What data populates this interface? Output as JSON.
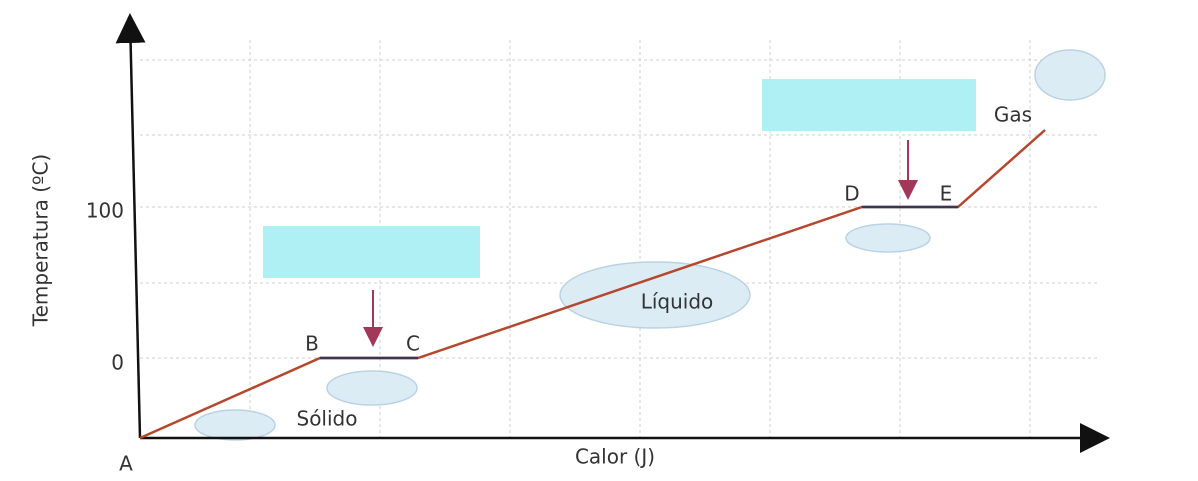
{
  "axes": {
    "x_label": "Calor (J)",
    "y_label": "Temperatura (ºC)",
    "y_ticks": [
      "100",
      "0"
    ]
  },
  "points": [
    "A",
    "B",
    "C",
    "D",
    "E"
  ],
  "phases": [
    "Sólido",
    "Líquido",
    "Gas"
  ]
}
